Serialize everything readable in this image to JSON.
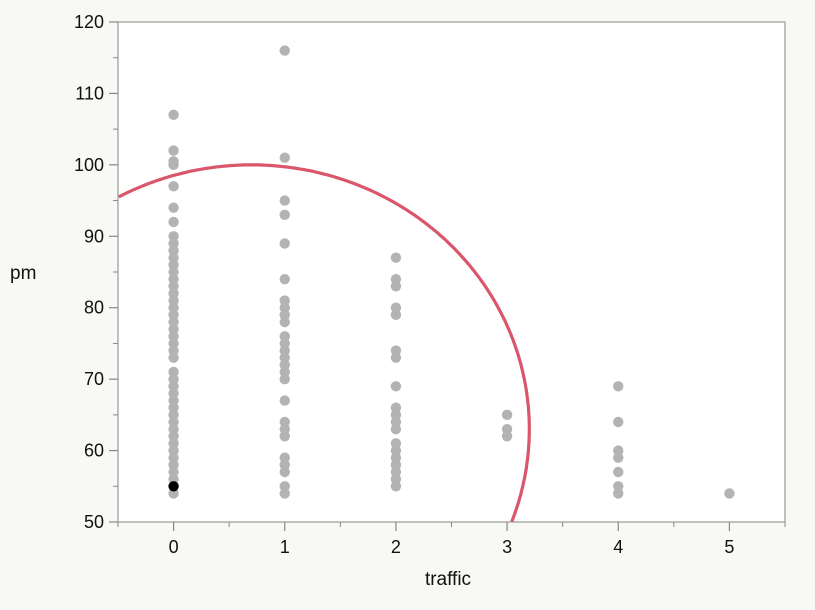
{
  "chart_data": {
    "type": "scatter",
    "xlabel": "traffic",
    "ylabel": "pm",
    "xlim": [
      -0.5,
      5.5
    ],
    "ylim": [
      50,
      120
    ],
    "x_ticks": [
      0,
      1,
      2,
      3,
      4,
      5
    ],
    "y_ticks": [
      50,
      60,
      70,
      80,
      90,
      100,
      110,
      120
    ],
    "grid": false,
    "colors": {
      "points": "#b3b3b3",
      "highlight": "#000000",
      "ellipse": "#d9566b",
      "frame": "#999999"
    },
    "points": [
      {
        "x": 0,
        "y": 107
      },
      {
        "x": 0,
        "y": 102
      },
      {
        "x": 0,
        "y": 100.5
      },
      {
        "x": 0,
        "y": 100
      },
      {
        "x": 0,
        "y": 97
      },
      {
        "x": 0,
        "y": 94
      },
      {
        "x": 0,
        "y": 92
      },
      {
        "x": 0,
        "y": 90
      },
      {
        "x": 0,
        "y": 89
      },
      {
        "x": 0,
        "y": 88
      },
      {
        "x": 0,
        "y": 87
      },
      {
        "x": 0,
        "y": 86
      },
      {
        "x": 0,
        "y": 85
      },
      {
        "x": 0,
        "y": 84
      },
      {
        "x": 0,
        "y": 83
      },
      {
        "x": 0,
        "y": 82
      },
      {
        "x": 0,
        "y": 81
      },
      {
        "x": 0,
        "y": 80
      },
      {
        "x": 0,
        "y": 79
      },
      {
        "x": 0,
        "y": 78
      },
      {
        "x": 0,
        "y": 77
      },
      {
        "x": 0,
        "y": 76
      },
      {
        "x": 0,
        "y": 75
      },
      {
        "x": 0,
        "y": 74
      },
      {
        "x": 0,
        "y": 73
      },
      {
        "x": 0,
        "y": 71
      },
      {
        "x": 0,
        "y": 70
      },
      {
        "x": 0,
        "y": 69
      },
      {
        "x": 0,
        "y": 68
      },
      {
        "x": 0,
        "y": 67
      },
      {
        "x": 0,
        "y": 66
      },
      {
        "x": 0,
        "y": 65
      },
      {
        "x": 0,
        "y": 64
      },
      {
        "x": 0,
        "y": 63
      },
      {
        "x": 0,
        "y": 62
      },
      {
        "x": 0,
        "y": 61
      },
      {
        "x": 0,
        "y": 60
      },
      {
        "x": 0,
        "y": 59
      },
      {
        "x": 0,
        "y": 58
      },
      {
        "x": 0,
        "y": 57
      },
      {
        "x": 0,
        "y": 56
      },
      {
        "x": 0,
        "y": 54
      },
      {
        "x": 1,
        "y": 116
      },
      {
        "x": 1,
        "y": 101
      },
      {
        "x": 1,
        "y": 95
      },
      {
        "x": 1,
        "y": 93
      },
      {
        "x": 1,
        "y": 89
      },
      {
        "x": 1,
        "y": 84
      },
      {
        "x": 1,
        "y": 81
      },
      {
        "x": 1,
        "y": 80
      },
      {
        "x": 1,
        "y": 79
      },
      {
        "x": 1,
        "y": 78
      },
      {
        "x": 1,
        "y": 76
      },
      {
        "x": 1,
        "y": 75
      },
      {
        "x": 1,
        "y": 74
      },
      {
        "x": 1,
        "y": 73
      },
      {
        "x": 1,
        "y": 72
      },
      {
        "x": 1,
        "y": 71
      },
      {
        "x": 1,
        "y": 70
      },
      {
        "x": 1,
        "y": 67
      },
      {
        "x": 1,
        "y": 64
      },
      {
        "x": 1,
        "y": 63
      },
      {
        "x": 1,
        "y": 62
      },
      {
        "x": 1,
        "y": 59
      },
      {
        "x": 1,
        "y": 58
      },
      {
        "x": 1,
        "y": 57
      },
      {
        "x": 1,
        "y": 55
      },
      {
        "x": 1,
        "y": 54
      },
      {
        "x": 2,
        "y": 87
      },
      {
        "x": 2,
        "y": 84
      },
      {
        "x": 2,
        "y": 83
      },
      {
        "x": 2,
        "y": 80
      },
      {
        "x": 2,
        "y": 79
      },
      {
        "x": 2,
        "y": 74
      },
      {
        "x": 2,
        "y": 73
      },
      {
        "x": 2,
        "y": 69
      },
      {
        "x": 2,
        "y": 66
      },
      {
        "x": 2,
        "y": 65
      },
      {
        "x": 2,
        "y": 64
      },
      {
        "x": 2,
        "y": 63
      },
      {
        "x": 2,
        "y": 61
      },
      {
        "x": 2,
        "y": 60
      },
      {
        "x": 2,
        "y": 59
      },
      {
        "x": 2,
        "y": 58
      },
      {
        "x": 2,
        "y": 57
      },
      {
        "x": 2,
        "y": 56
      },
      {
        "x": 2,
        "y": 55
      },
      {
        "x": 3,
        "y": 65
      },
      {
        "x": 3,
        "y": 63
      },
      {
        "x": 3,
        "y": 62
      },
      {
        "x": 4,
        "y": 69
      },
      {
        "x": 4,
        "y": 64
      },
      {
        "x": 4,
        "y": 60
      },
      {
        "x": 4,
        "y": 59
      },
      {
        "x": 4,
        "y": 57
      },
      {
        "x": 4,
        "y": 55
      },
      {
        "x": 4,
        "y": 54
      },
      {
        "x": 5,
        "y": 54
      }
    ],
    "highlighted_point": {
      "x": 0,
      "y": 55
    },
    "ellipse": {
      "center": [
        0.7,
        63
      ],
      "semi_axes_approx": [
        2.5,
        37
      ],
      "note_visible_part": ""
    }
  }
}
